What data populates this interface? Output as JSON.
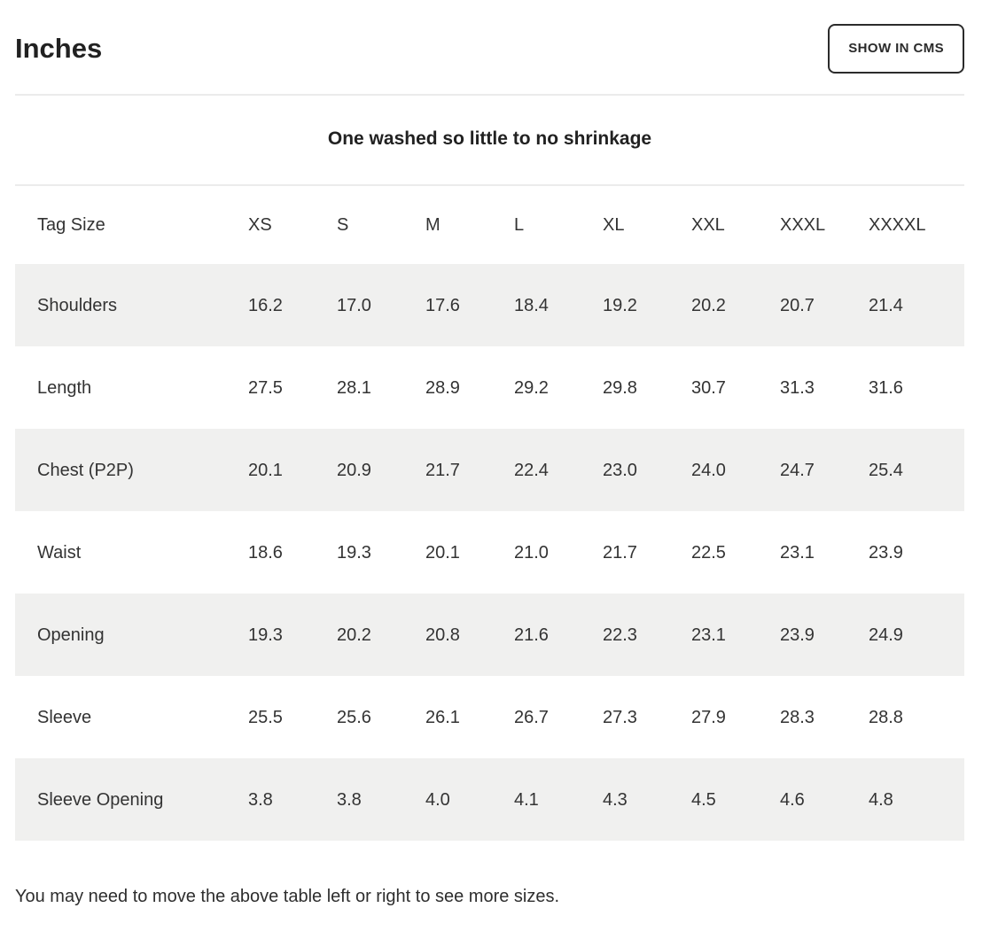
{
  "header": {
    "title": "Inches",
    "show_in_cms_label": "SHOW IN CMS"
  },
  "subtitle": "One washed so little to no shrinkage",
  "table": {
    "columns": [
      "Tag Size",
      "XS",
      "S",
      "M",
      "L",
      "XL",
      "XXL",
      "XXXL",
      "XXXXL"
    ],
    "rows": [
      {
        "label": "Shoulders",
        "values": [
          "16.2",
          "17.0",
          "17.6",
          "18.4",
          "19.2",
          "20.2",
          "20.7",
          "21.4"
        ]
      },
      {
        "label": "Length",
        "values": [
          "27.5",
          "28.1",
          "28.9",
          "29.2",
          "29.8",
          "30.7",
          "31.3",
          "31.6"
        ]
      },
      {
        "label": "Chest (P2P)",
        "values": [
          "20.1",
          "20.9",
          "21.7",
          "22.4",
          "23.0",
          "24.0",
          "24.7",
          "25.4"
        ]
      },
      {
        "label": "Waist",
        "values": [
          "18.6",
          "19.3",
          "20.1",
          "21.0",
          "21.7",
          "22.5",
          "23.1",
          "23.9"
        ]
      },
      {
        "label": "Opening",
        "values": [
          "19.3",
          "20.2",
          "20.8",
          "21.6",
          "22.3",
          "23.1",
          "23.9",
          "24.9"
        ]
      },
      {
        "label": "Sleeve",
        "values": [
          "25.5",
          "25.6",
          "26.1",
          "26.7",
          "27.3",
          "27.9",
          "28.3",
          "28.8"
        ]
      },
      {
        "label": "Sleeve Opening",
        "values": [
          "3.8",
          "3.8",
          "4.0",
          "4.1",
          "4.3",
          "4.5",
          "4.6",
          "4.8"
        ]
      }
    ]
  },
  "footnote": "You may need to move the above table left or right to see more sizes.",
  "colors": {
    "text": "#2e2e2e",
    "alt_row_bg": "#f0f0ef",
    "divider": "#ebebeb",
    "button_border": "#2b2b2b"
  }
}
